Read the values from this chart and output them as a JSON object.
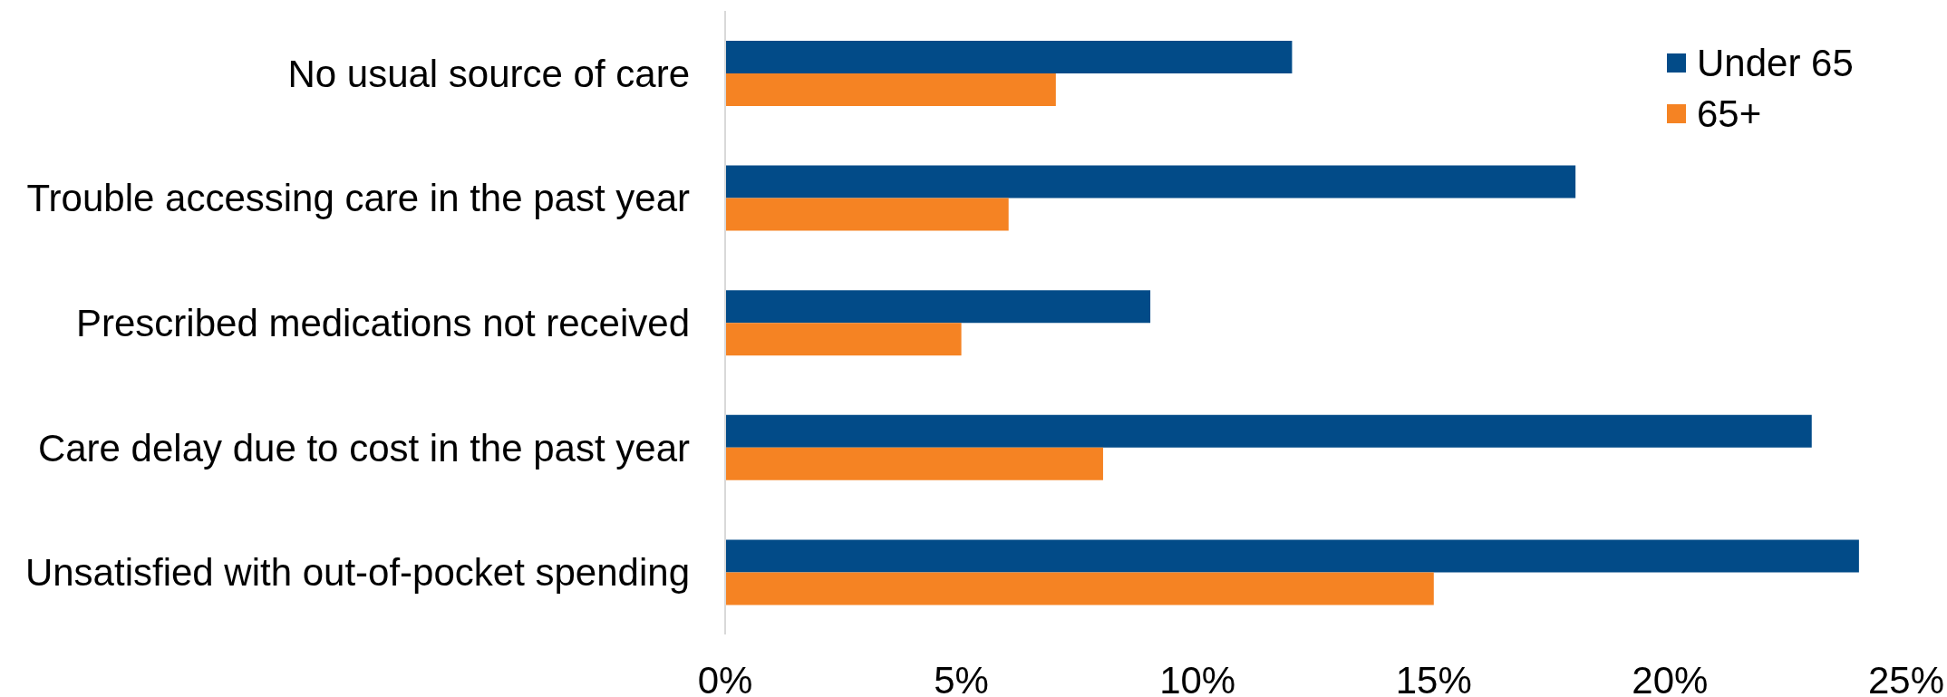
{
  "chart_data": {
    "type": "bar",
    "orientation": "horizontal",
    "categories": [
      "No usual source of care",
      "Trouble accessing care in the past year",
      "Prescribed medications not received",
      "Care delay due to cost in the past year",
      "Unsatisfied with out-of-pocket spending"
    ],
    "series": [
      {
        "name": "Under 65",
        "color": "#024b88",
        "values": [
          12,
          18,
          9,
          23,
          24
        ]
      },
      {
        "name": "65+",
        "color": "#f58323",
        "values": [
          7,
          6,
          5,
          8,
          15
        ]
      }
    ],
    "xlim": [
      0,
      25
    ],
    "xticks": [
      {
        "value": 0,
        "label": "0%"
      },
      {
        "value": 5,
        "label": "5%"
      },
      {
        "value": 10,
        "label": "10%"
      },
      {
        "value": 15,
        "label": "15%"
      },
      {
        "value": 20,
        "label": "20%"
      },
      {
        "value": 25,
        "label": "25%"
      }
    ],
    "legend": "top right"
  }
}
